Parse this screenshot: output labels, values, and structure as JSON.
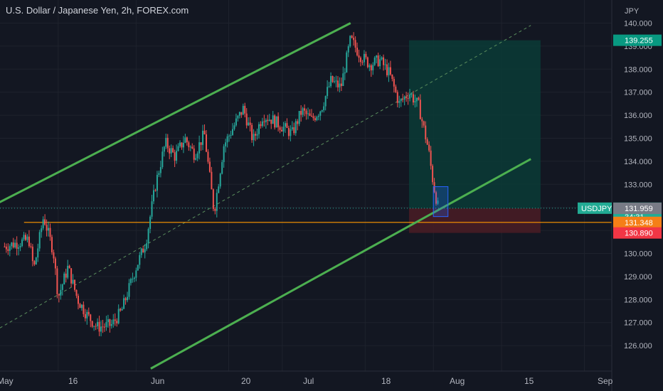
{
  "header": {
    "title": "U.S. Dollar / Japanese Yen, 2h, FOREX.com"
  },
  "chart_data": {
    "type": "candlestick",
    "title": "U.S. Dollar / Japanese Yen, 2h, FOREX.com",
    "currency_label": "JPY",
    "symbol": "USDJPY",
    "y_ticks": [
      "140.000",
      "139.000",
      "138.000",
      "137.000",
      "136.000",
      "135.000",
      "134.000",
      "133.000",
      "132.000",
      "131.000",
      "130.000",
      "129.000",
      "128.000",
      "127.000",
      "126.000"
    ],
    "x_ticks": [
      "May",
      "16",
      "Jun",
      "20",
      "Jul",
      "18",
      "Aug",
      "15",
      "Sep"
    ],
    "price_path": [
      [
        "May 5",
        130.3
      ],
      [
        "May 10",
        130.6
      ],
      [
        "May 11",
        129.3
      ],
      [
        "May 13",
        131.6
      ],
      [
        "May 15",
        130.1
      ],
      [
        "May 16",
        128.1
      ],
      [
        "May 18",
        129.4
      ],
      [
        "May 20",
        128.0
      ],
      [
        "May 22",
        127.3
      ],
      [
        "May 24",
        126.8
      ],
      [
        "May 27",
        126.9
      ],
      [
        "May 29",
        127.5
      ],
      [
        "Jun 1",
        129.4
      ],
      [
        "Jun 3",
        130.5
      ],
      [
        "Jun 5",
        133.0
      ],
      [
        "Jun 7",
        134.8
      ],
      [
        "Jun 9",
        134.2
      ],
      [
        "Jun 11",
        135.0
      ],
      [
        "Jun 13",
        134.3
      ],
      [
        "Jun 15",
        135.2
      ],
      [
        "Jun 17",
        131.8
      ],
      [
        "Jun 19",
        134.7
      ],
      [
        "Jun 21",
        135.5
      ],
      [
        "Jun 23",
        136.3
      ],
      [
        "Jun 25",
        134.9
      ],
      [
        "Jun 27",
        136.0
      ],
      [
        "Jun 29",
        135.8
      ],
      [
        "Jul 1",
        135.5
      ],
      [
        "Jul 3",
        135.2
      ],
      [
        "Jul 5",
        136.2
      ],
      [
        "Jul 7",
        135.8
      ],
      [
        "Jul 9",
        136.3
      ],
      [
        "Jul 11",
        137.5
      ],
      [
        "Jul 13",
        137.2
      ],
      [
        "Jul 15",
        139.3
      ],
      [
        "Jul 17",
        138.6
      ],
      [
        "Jul 19",
        138.2
      ],
      [
        "Jul 21",
        138.4
      ],
      [
        "Jul 23",
        137.8
      ],
      [
        "Jul 25",
        136.5
      ],
      [
        "Jul 27",
        137.0
      ],
      [
        "Jul 29",
        136.4
      ],
      [
        "Jul 31",
        134.5
      ],
      [
        "Aug 1",
        133.0
      ],
      [
        "Aug 2",
        131.96
      ]
    ],
    "annotations": {
      "upper_channel_line": {
        "start": [
          "May 1",
          131.9
        ],
        "end": [
          "Jul 15",
          140.0
        ]
      },
      "lower_channel_line": {
        "start": [
          "Jun 4",
          125.0
        ],
        "end": [
          "Aug 21",
          134.1
        ]
      },
      "mid_channel_line": {
        "start": [
          "May 1",
          126.4
        ],
        "end": [
          "Aug 21",
          139.9
        ]
      },
      "horizontal_level": 131.348,
      "entry_box": {
        "x0": "Aug 1",
        "x1": "Aug 4",
        "y0": 131.6,
        "y1": 132.9
      },
      "target_zone": {
        "x0": "Jul 27",
        "x1": "Aug 23",
        "y0": 131.96,
        "y1": 139.255
      },
      "stop_zone": {
        "x0": "Jul 27",
        "x1": "Aug 23",
        "y0": 130.89,
        "y1": 131.96
      }
    },
    "price_labels": [
      {
        "text": "139.255",
        "value": 139.255,
        "color": "#089981"
      },
      {
        "text": "131.965",
        "value": 131.965,
        "color": "#22ab94",
        "extra": "34:31"
      },
      {
        "text": "131.959",
        "value": 131.959,
        "color": "#787b86"
      },
      {
        "text": "131.348",
        "value": 131.348,
        "color": "#f57f17"
      },
      {
        "text": "130.890",
        "value": 130.89,
        "color": "#f23645"
      }
    ],
    "colors": {
      "background": "#131722",
      "grid": "#1e222d",
      "up_candle": "#26a69a",
      "down_candle": "#ef5350",
      "channel": "#4caf50",
      "target_fill": "#0b3b36",
      "stop_fill": "#4a1c25",
      "level": "#ff9800",
      "text": "#b2b5be"
    }
  }
}
